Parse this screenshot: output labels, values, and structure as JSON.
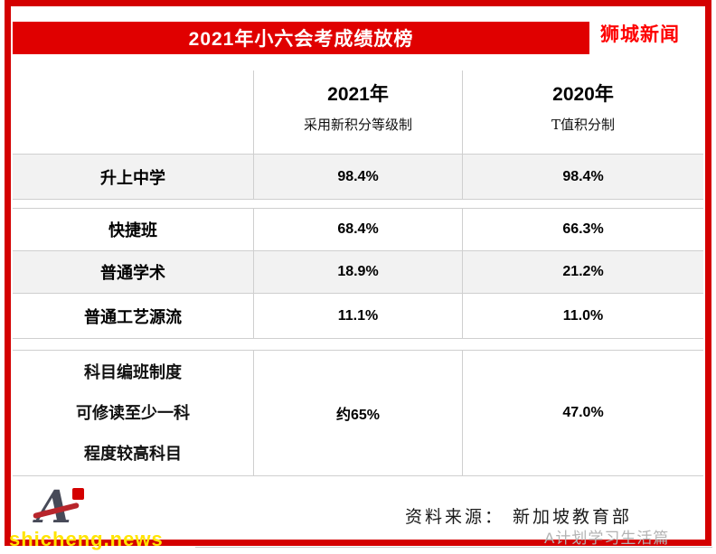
{
  "header": {
    "brand": "狮城新闻"
  },
  "chart_data": {
    "type": "table",
    "title": "2021年小六会考成绩放榜",
    "columns": [
      {
        "label": "2021年",
        "sublabel": "采用新积分等级制"
      },
      {
        "label": "2020年",
        "sublabel": "T值积分制"
      }
    ],
    "rows": [
      {
        "label": "升上中学",
        "values": [
          "98.4%",
          "98.4%"
        ]
      },
      {
        "label": "快捷班",
        "values": [
          "68.4%",
          "66.3%"
        ]
      },
      {
        "label": "普通学术",
        "values": [
          "18.9%",
          "21.2%"
        ]
      },
      {
        "label": "普通工艺源流",
        "values": [
          "11.1%",
          "11.0%"
        ]
      },
      {
        "label": "科目编班制度 可修读至少一科 程度较高科目",
        "label_lines": [
          "科目编班制度",
          "可修读至少一科",
          "程度较高科目"
        ],
        "values": [
          "约65%",
          "47.0%"
        ]
      }
    ]
  },
  "footer": {
    "source": "资料来源： 新加坡教育部",
    "watermark": "A计划学习生活篇",
    "site": "shicheng.news"
  },
  "colors": {
    "banner_red": "#e00000",
    "frame_red": "#d40000",
    "brand_red": "#fe0000",
    "row_shade": "#f2f2f2",
    "border_gray": "#cfcfcf",
    "site_yellow": "#ffe400",
    "watermark_gray": "#b3b3b3"
  }
}
